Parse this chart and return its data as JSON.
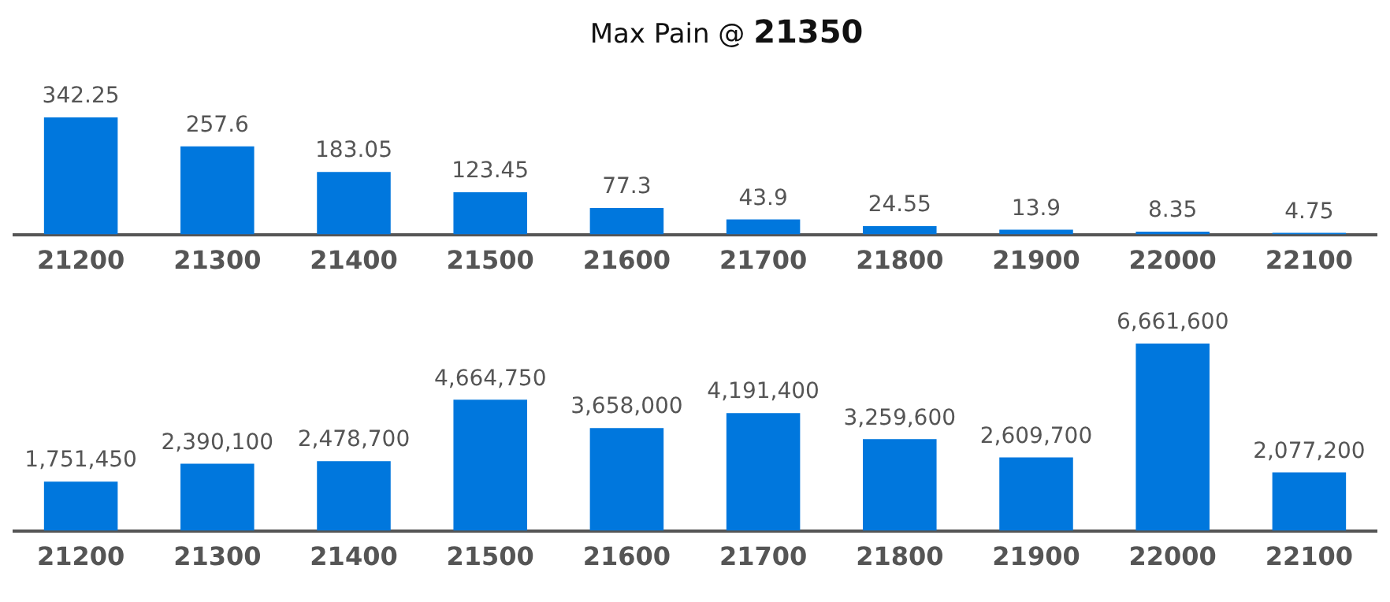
{
  "chart_data": [
    {
      "type": "bar",
      "title": "Max Pain @ 21350",
      "categories": [
        "21200",
        "21300",
        "21400",
        "21500",
        "21600",
        "21700",
        "21800",
        "21900",
        "22000",
        "22100"
      ],
      "values": [
        342.25,
        257.6,
        183.05,
        123.45,
        77.3,
        43.9,
        24.55,
        13.9,
        8.35,
        4.75
      ],
      "color": "#0077dd",
      "tick_labels": "x",
      "data_labels": true
    },
    {
      "type": "bar",
      "categories": [
        "21200",
        "21300",
        "21400",
        "21500",
        "21600",
        "21700",
        "21800",
        "21900",
        "22000",
        "22100"
      ],
      "values": [
        1751450,
        2390100,
        2478700,
        4664750,
        3658000,
        4191400,
        3259600,
        2609700,
        6661600,
        2077200
      ],
      "color": "#0077dd",
      "value_labels": [
        "1,751,450",
        "2,390,100",
        "2,478,700",
        "4,664,750",
        "3,658,000",
        "4,191,400",
        "3,259,600",
        "2,609,700",
        "6,661,600",
        "2,077,200"
      ],
      "tick_labels": "x"
    }
  ]
}
